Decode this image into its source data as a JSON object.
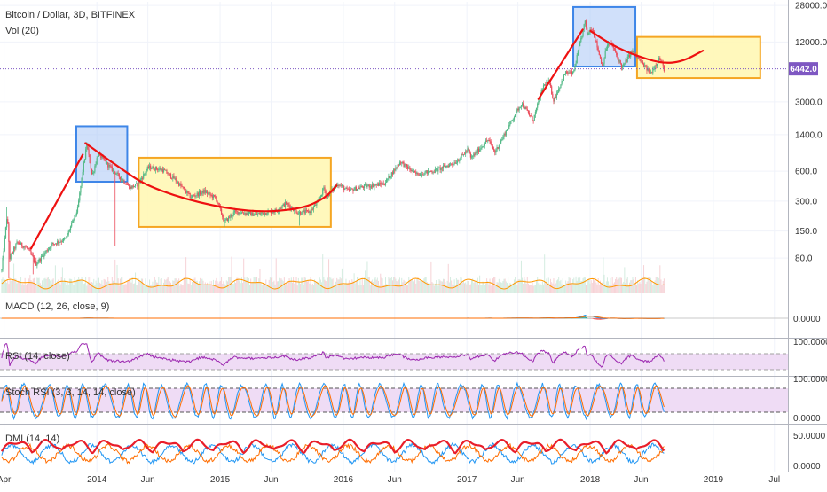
{
  "header": {
    "title": "Bitcoin / Dollar, 3D, BITFINEX",
    "vol_label": "Vol (20)"
  },
  "price_label": "6442.0",
  "colors": {
    "up": "#53b987",
    "down": "#eb4d5c",
    "annot_red": "#ee1111",
    "blue_box_fill": "#a9c6f5",
    "blue_box_stroke": "#3e86e8",
    "orange_box_fill": "#fff7b0",
    "orange_box_stroke": "#f5a623",
    "macd": "#2196f3",
    "signal": "#ff6d00",
    "rsi": "#9c27b0",
    "rsi_band": "#efdcf5",
    "stoch_k": "#2196f3",
    "stoch_d": "#ff6d00",
    "di_plus": "#2196f3",
    "di_minus": "#ff6d00",
    "adx": "#e91e2a",
    "price_line": "#7e57c2"
  },
  "chart_data": [
    {
      "type": "candlestick",
      "title": "Bitcoin / Dollar, 3D, BITFINEX",
      "y_scale": "log",
      "y_ticks": [
        "28000.0",
        "12000.0",
        "3000.0",
        "1400.0",
        "600.0",
        "300.0",
        "150.0",
        "80.0"
      ],
      "y_tick_values": [
        28000,
        12000,
        3000,
        1400,
        600,
        300,
        150,
        80
      ],
      "x_ticks": [
        "Apr",
        "2014",
        "Jun",
        "2015",
        "Jun",
        "2016",
        "Jun",
        "2017",
        "Jun",
        "2018",
        "Jun",
        "2019",
        "Jul"
      ],
      "x_tick_dates": [
        "2013-04-01",
        "2014-01-01",
        "2014-06-01",
        "2015-01-01",
        "2015-06-01",
        "2016-01-01",
        "2016-06-01",
        "2017-01-01",
        "2017-06-01",
        "2018-01-01",
        "2018-06-01",
        "2019-01-01",
        "2019-07-01"
      ],
      "x_range": [
        "2013-03-20",
        "2019-08-10"
      ],
      "last_price": 6442,
      "anchors": [
        [
          "2013-03-25",
          60
        ],
        [
          "2013-04-10",
          220
        ],
        [
          "2013-04-18",
          80
        ],
        [
          "2013-05-10",
          115
        ],
        [
          "2013-06-10",
          100
        ],
        [
          "2013-07-05",
          70
        ],
        [
          "2013-08-20",
          110
        ],
        [
          "2013-10-01",
          125
        ],
        [
          "2013-11-05",
          250
        ],
        [
          "2013-11-20",
          600
        ],
        [
          "2013-12-02",
          1120
        ],
        [
          "2013-12-18",
          540
        ],
        [
          "2014-01-05",
          900
        ],
        [
          "2014-02-10",
          650
        ],
        [
          "2014-03-01",
          560
        ],
        [
          "2014-04-10",
          410
        ],
        [
          "2014-05-01",
          440
        ],
        [
          "2014-06-03",
          660
        ],
        [
          "2014-07-15",
          620
        ],
        [
          "2014-08-20",
          500
        ],
        [
          "2014-10-05",
          330
        ],
        [
          "2014-11-15",
          375
        ],
        [
          "2014-12-20",
          320
        ],
        [
          "2015-01-14",
          185
        ],
        [
          "2015-02-15",
          235
        ],
        [
          "2015-04-15",
          220
        ],
        [
          "2015-06-15",
          240
        ],
        [
          "2015-07-15",
          285
        ],
        [
          "2015-08-20",
          230
        ],
        [
          "2015-09-25",
          235
        ],
        [
          "2015-10-20",
          300
        ],
        [
          "2015-11-04",
          410
        ],
        [
          "2015-11-12",
          330
        ],
        [
          "2015-12-15",
          450
        ],
        [
          "2016-01-15",
          380
        ],
        [
          "2016-03-01",
          420
        ],
        [
          "2016-05-01",
          450
        ],
        [
          "2016-06-18",
          750
        ],
        [
          "2016-08-02",
          560
        ],
        [
          "2016-10-01",
          610
        ],
        [
          "2016-12-01",
          750
        ],
        [
          "2017-01-05",
          1000
        ],
        [
          "2017-01-12",
          810
        ],
        [
          "2017-03-05",
          1250
        ],
        [
          "2017-03-25",
          930
        ],
        [
          "2017-05-25",
          2300
        ],
        [
          "2017-06-12",
          2900
        ],
        [
          "2017-07-16",
          1950
        ],
        [
          "2017-08-15",
          4300
        ],
        [
          "2017-09-01",
          4800
        ],
        [
          "2017-09-15",
          3100
        ],
        [
          "2017-10-20",
          5900
        ],
        [
          "2017-11-12",
          5800
        ],
        [
          "2017-12-17",
          19400
        ],
        [
          "2017-12-22",
          14000
        ],
        [
          "2018-01-06",
          17000
        ],
        [
          "2018-01-20",
          11500
        ],
        [
          "2018-02-06",
          6900
        ],
        [
          "2018-02-20",
          11200
        ],
        [
          "2018-03-05",
          11500
        ],
        [
          "2018-04-06",
          6600
        ],
        [
          "2018-05-05",
          9800
        ],
        [
          "2018-06-01",
          7500
        ],
        [
          "2018-06-29",
          5800
        ],
        [
          "2018-07-25",
          8300
        ],
        [
          "2018-08-08",
          6442
        ]
      ],
      "annotations": [
        {
          "type": "line",
          "color": "red",
          "points": [
            [
              "2013-06-20",
              100
            ],
            [
              "2013-11-20",
              880
            ]
          ]
        },
        {
          "type": "arc",
          "color": "red",
          "points": [
            [
              "2013-11-28",
              1150
            ],
            [
              "2014-03-15",
              630
            ],
            [
              "2014-06-01",
              420
            ],
            [
              "2014-11-01",
              285
            ],
            [
              "2015-04-15",
              230
            ],
            [
              "2015-09-01",
              250
            ],
            [
              "2015-11-10",
              325
            ],
            [
              "2015-12-12",
              430
            ]
          ]
        },
        {
          "type": "line",
          "color": "red",
          "points": [
            [
              "2017-08-01",
              3200
            ],
            [
              "2017-12-10",
              16000
            ]
          ]
        },
        {
          "type": "arc",
          "color": "red",
          "points": [
            [
              "2018-01-02",
              15500
            ],
            [
              "2018-03-10",
              11000
            ],
            [
              "2018-05-15",
              8800
            ],
            [
              "2018-08-01",
              7300
            ],
            [
              "2018-10-01",
              7600
            ],
            [
              "2018-12-01",
              9800
            ]
          ]
        },
        {
          "type": "box",
          "style": "blue",
          "from": "2013-11-01",
          "to": "2014-04-01",
          "top": 1700,
          "bottom": 470
        },
        {
          "type": "box",
          "style": "orange",
          "from": "2014-05-05",
          "to": "2015-11-25",
          "top": 820,
          "bottom": 165
        },
        {
          "type": "box",
          "style": "blue",
          "from": "2017-11-12",
          "to": "2018-05-15",
          "top": 27000,
          "bottom": 6800
        },
        {
          "type": "box",
          "style": "orange",
          "from": "2018-05-20",
          "to": "2019-05-20",
          "top": 13500,
          "bottom": 5200
        }
      ]
    },
    {
      "type": "line",
      "title": "MACD (12, 26, close, 9)",
      "y_ticks": [
        "0.0000"
      ],
      "series": [
        {
          "values": []
        }
      ]
    },
    {
      "type": "line",
      "title": "RSI (14, close)",
      "y_ticks": [
        "100.0000"
      ],
      "series": [
        {
          "values": []
        }
      ]
    },
    {
      "type": "line",
      "title": "Stoch RSI (3, 3, 14, 14, close)",
      "y_ticks": [
        "100.0000",
        "0.0000"
      ],
      "series": [
        {
          "values": []
        },
        {
          "values": []
        }
      ]
    },
    {
      "type": "line",
      "title": "DMI (14, 14)",
      "y_ticks": [
        "50.0000",
        "0.0000"
      ],
      "series": [
        {
          "values": []
        },
        {
          "values": []
        },
        {
          "values": []
        }
      ]
    }
  ],
  "panes": {
    "macd_title": "MACD (12, 26, close, 9)",
    "macd_tick": "0.0000",
    "rsi_title": "RSI (14, close)",
    "rsi_tick": "100.0000",
    "stoch_title": "Stoch RSI (3, 3, 14, 14, close)",
    "stoch_tick_top": "100.0000",
    "stoch_tick_bottom": "0.0000",
    "dmi_title": "DMI (14, 14)",
    "dmi_tick_top": "50.0000",
    "dmi_tick_bottom": "0.0000"
  }
}
